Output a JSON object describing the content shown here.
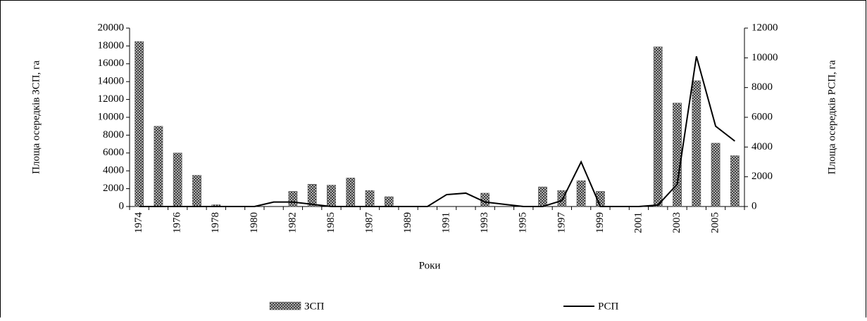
{
  "chart_data": {
    "type": "bar-line",
    "x_label": "Роки",
    "y_label": "Площа осередків ЗСП, га",
    "y2_label": "Площа осередків  РСП, га",
    "categories": [
      "1974",
      null,
      "1976",
      null,
      "1978",
      null,
      "1980",
      null,
      "1982",
      null,
      "1985",
      null,
      "1987",
      null,
      "1989",
      null,
      "1991",
      null,
      "1993",
      null,
      "1995",
      null,
      "1997",
      null,
      "1999",
      null,
      "2001",
      null,
      "2003",
      null,
      "2005",
      null
    ],
    "series": [
      {
        "name": "ЗСП",
        "type": "bar",
        "color": "#555555",
        "values": [
          18500,
          9000,
          6000,
          3500,
          200,
          0,
          0,
          0,
          1700,
          2500,
          2400,
          3200,
          1800,
          1100,
          0,
          0,
          0,
          0,
          1500,
          0,
          0,
          2200,
          1800,
          2900,
          1700,
          0,
          0,
          17900,
          11600,
          14100,
          7100,
          5700
        ]
      },
      {
        "name": "РСП",
        "type": "line",
        "axis": "y2",
        "color": "#000000",
        "values": [
          0,
          0,
          0,
          0,
          0,
          0,
          0,
          300,
          300,
          150,
          0,
          0,
          0,
          0,
          0,
          0,
          800,
          900,
          300,
          150,
          0,
          0,
          400,
          3000,
          0,
          0,
          0,
          100,
          1500,
          10100,
          5400,
          4400
        ]
      }
    ],
    "ylim": [
      0,
      20000
    ],
    "yticks": [
      0,
      2000,
      4000,
      6000,
      8000,
      10000,
      12000,
      14000,
      16000,
      18000,
      20000
    ],
    "y2lim": [
      0,
      12000
    ],
    "y2ticks": [
      0,
      2000,
      4000,
      6000,
      8000,
      10000,
      12000
    ],
    "grid": false,
    "legend": "bottom"
  }
}
